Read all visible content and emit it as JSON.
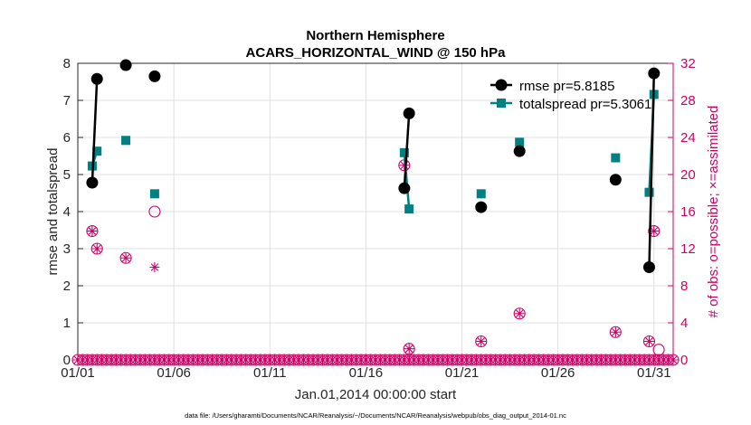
{
  "colors": {
    "rmse": "#000000",
    "spread": "#008080",
    "obs": "#cc0066",
    "grid": "#d9d9d9",
    "axis": "#262626"
  },
  "chart_data": {
    "type": "line",
    "title": "Northern Hemisphere",
    "subtitle": "ACARS_HORIZONTAL_WIND @ 150 hPa",
    "xlabel": "Jan.01,2014 00:00:00 start",
    "ylabel": "rmse and totalspread",
    "y2label": "# of obs: o=possible; ×=assimilated",
    "footer": "data file: /Users/gharamti/Documents/NCAR/Reanalysis/~/Documents/NCAR/Reanalysis/webpub/obs_diag_output_2014-01.nc",
    "xlim": [
      1,
      32
    ],
    "ylim": [
      0,
      8
    ],
    "y2lim": [
      0,
      32
    ],
    "xticks": [
      1,
      6,
      11,
      16,
      21,
      26,
      31
    ],
    "xticklabels": [
      "01/01",
      "01/06",
      "01/11",
      "01/16",
      "01/21",
      "01/26",
      "01/31"
    ],
    "yticks": [
      0,
      1,
      2,
      3,
      4,
      5,
      6,
      7,
      8
    ],
    "y2ticks": [
      0,
      4,
      8,
      12,
      16,
      20,
      24,
      28,
      32
    ],
    "grid": true,
    "legend_position": "top-right",
    "series": [
      {
        "name": "rmse",
        "legend": "rmse pr=5.8185",
        "points": [
          [
            1.75,
            4.78
          ],
          [
            2.0,
            7.58
          ],
          [
            3.5,
            7.95
          ],
          [
            5.0,
            7.65
          ],
          [
            18.0,
            4.63
          ],
          [
            18.25,
            6.65
          ],
          [
            22.0,
            4.12
          ],
          [
            24.0,
            5.63
          ],
          [
            29.0,
            4.86
          ],
          [
            30.75,
            2.5
          ],
          [
            31.0,
            7.73
          ]
        ],
        "segments": [
          [
            0,
            1
          ],
          [
            4,
            5
          ],
          [
            9,
            10
          ]
        ]
      },
      {
        "name": "totalspread",
        "legend": "totalspread pr=5.3061",
        "points": [
          [
            1.75,
            5.23
          ],
          [
            2.0,
            5.63
          ],
          [
            3.5,
            5.92
          ],
          [
            5.0,
            4.48
          ],
          [
            18.0,
            5.59
          ],
          [
            18.25,
            4.07
          ],
          [
            22.0,
            4.48
          ],
          [
            24.0,
            5.87
          ],
          [
            29.0,
            5.45
          ],
          [
            30.75,
            4.52
          ],
          [
            31.0,
            7.16
          ]
        ],
        "segments": [
          [
            0,
            1
          ],
          [
            4,
            5
          ],
          [
            9,
            10
          ]
        ]
      }
    ],
    "obs_possible": {
      "points": [
        [
          1.75,
          13.9
        ],
        [
          2.0,
          12.0
        ],
        [
          3.5,
          11.0
        ],
        [
          5.0,
          16.0
        ],
        [
          18.0,
          21.0
        ],
        [
          18.25,
          1.2
        ],
        [
          22.0,
          2.0
        ],
        [
          24.0,
          5.0
        ],
        [
          29.0,
          3.0
        ],
        [
          30.75,
          2.0
        ],
        [
          31.0,
          13.9
        ],
        [
          31.25,
          1.1
        ]
      ],
      "zero_start": 1.0,
      "zero_end": 32.0,
      "zero_step": 0.25
    },
    "obs_assimilated": {
      "points": [
        [
          1.75,
          13.9
        ],
        [
          2.0,
          12.0
        ],
        [
          3.5,
          11.0
        ],
        [
          5.0,
          10.0
        ],
        [
          18.0,
          21.0
        ],
        [
          18.25,
          1.2
        ],
        [
          22.0,
          2.0
        ],
        [
          24.0,
          5.0
        ],
        [
          29.0,
          3.0
        ],
        [
          30.75,
          2.0
        ],
        [
          31.0,
          13.9
        ]
      ],
      "zero_start": 1.0,
      "zero_end": 32.0,
      "zero_step": 0.25
    }
  }
}
